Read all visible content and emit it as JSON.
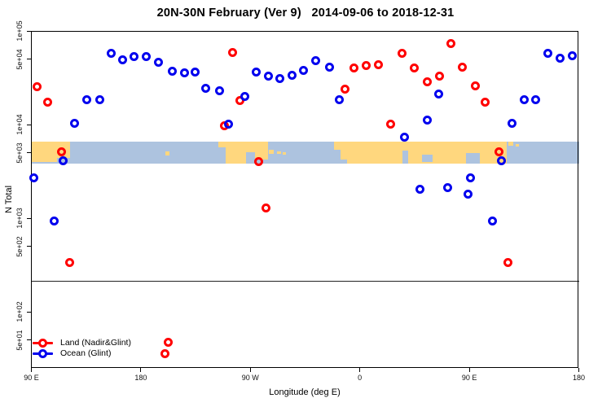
{
  "title": "20N-30N February (Ver 9)   2014-09-06 to 2018-12-31",
  "axes": {
    "x_label": "Longitude (deg E)",
    "y_label": "N Total",
    "x_ticks": [
      {
        "label": "90 E",
        "t": 0
      },
      {
        "label": "180",
        "t": 90
      },
      {
        "label": "90 W",
        "t": 180
      },
      {
        "label": "0",
        "t": 270
      },
      {
        "label": "90 E",
        "t": 360
      },
      {
        "label": "180",
        "t": 450
      }
    ],
    "y_ticks": [
      {
        "label": "1e+05",
        "n": 100000
      },
      {
        "label": "5e+04",
        "n": 50000
      },
      {
        "label": "1e+04",
        "n": 10000
      },
      {
        "label": "5e+03",
        "n": 5000
      },
      {
        "label": "1e+03",
        "n": 1000
      },
      {
        "label": "5e+02",
        "n": 500
      },
      {
        "label": "1e+02",
        "n": 100
      },
      {
        "label": "5e+01",
        "n": 50
      }
    ]
  },
  "legend": {
    "items": [
      {
        "label": "Land (Nadir&Glint)",
        "color": "#FF0000"
      },
      {
        "label": "Ocean (Glint)",
        "color": "#0000EE"
      }
    ]
  },
  "colors": {
    "land_point": "#FF0000",
    "ocean_point": "#0000EE",
    "map_land": "#FFD77E",
    "map_ocean": "#ADC3DF",
    "axis": "#000000"
  },
  "chart_data": {
    "type": "scatter",
    "title": "20N-30N February (Ver 9)   2014-09-06 to 2018-12-31",
    "xlabel": "Longitude (deg E)",
    "ylabel": "N Total",
    "x_axis": {
      "note": "degrees east of 90E, axis wraps 90E->180->90W->0->90E->180",
      "range": [
        0,
        450
      ]
    },
    "y_axis": {
      "scale": "log10",
      "top": 100000,
      "bottom": 25
    },
    "threshold_line_n": 214,
    "map_band": {
      "top_n": 6560,
      "bottom_n": 3830,
      "land_patches": [
        [
          0,
          0,
          31.8,
          0.74
        ],
        [
          0,
          0.7,
          21,
          0.23
        ],
        [
          110.2,
          0.45,
          3.3,
          0.18
        ],
        [
          153.7,
          0,
          6.7,
          0.26
        ],
        [
          159.7,
          0,
          16.7,
          1.0
        ],
        [
          176.4,
          0,
          7.5,
          0.5
        ],
        [
          183.8,
          0,
          10.7,
          0.81
        ],
        [
          195.2,
          0.37,
          4.0,
          0.18
        ],
        [
          201.9,
          0.44,
          3.3,
          0.13
        ],
        [
          206.6,
          0.48,
          2.7,
          0.13
        ],
        [
          248.8,
          0,
          5.4,
          0.37
        ],
        [
          254.1,
          0,
          136.6,
          1.0
        ],
        [
          392.1,
          0,
          4.0,
          0.2
        ],
        [
          398.1,
          0.11,
          2.7,
          0.13
        ]
      ],
      "ocean_notches": [
        [
          305.0,
          0.41,
          4.7,
          0.59
        ],
        [
          321.1,
          0.59,
          8.7,
          0.34
        ],
        [
          357.3,
          0.52,
          11.4,
          0.48
        ],
        [
          254.1,
          0.81,
          5.4,
          0.19
        ]
      ]
    },
    "series": [
      {
        "name": "Land (Nadir&Glint)",
        "color": "#FF0000",
        "points": [
          [
            4.8,
            25600
          ],
          [
            13.3,
            17500
          ],
          [
            24.9,
            5100
          ],
          [
            31.6,
            334
          ],
          [
            109.7,
            36
          ],
          [
            112.6,
            47
          ],
          [
            158.8,
            9700
          ],
          [
            165.7,
            59000
          ],
          [
            171.6,
            18200
          ],
          [
            187.0,
            4000
          ],
          [
            193.0,
            1280
          ],
          [
            257.7,
            23800
          ],
          [
            265.1,
            40600
          ],
          [
            275.1,
            42300
          ],
          [
            285.3,
            44000
          ],
          [
            295.2,
            10100
          ],
          [
            305.0,
            57600
          ],
          [
            314.6,
            40000
          ],
          [
            325.3,
            28700
          ],
          [
            335.2,
            32900
          ],
          [
            345.2,
            73000
          ],
          [
            354.4,
            40900
          ],
          [
            364.8,
            25800
          ],
          [
            373.3,
            17500
          ],
          [
            384.5,
            5100
          ],
          [
            391.6,
            334
          ]
        ]
      },
      {
        "name": "Ocean (Glint)",
        "color": "#0000EE",
        "points": [
          [
            1.7,
            2700
          ],
          [
            18.9,
            940
          ],
          [
            26.3,
            4100
          ],
          [
            35.6,
            10300
          ],
          [
            45.7,
            18500
          ],
          [
            56.1,
            18500
          ],
          [
            65.8,
            57100
          ],
          [
            75.1,
            49300
          ],
          [
            84.7,
            52700
          ],
          [
            94.1,
            52700
          ],
          [
            104.3,
            46700
          ],
          [
            115.9,
            36800
          ],
          [
            125.6,
            35800
          ],
          [
            134.5,
            36500
          ],
          [
            143.6,
            24600
          ],
          [
            154.4,
            23000
          ],
          [
            162.2,
            10100
          ],
          [
            175.6,
            19900
          ],
          [
            184.5,
            36500
          ],
          [
            194.7,
            33000
          ],
          [
            204.1,
            31300
          ],
          [
            214.2,
            33700
          ],
          [
            223.8,
            37700
          ],
          [
            234.0,
            48200
          ],
          [
            244.8,
            41400
          ],
          [
            252.8,
            18400
          ],
          [
            306.4,
            7400
          ],
          [
            319.6,
            2040
          ],
          [
            325.3,
            11100
          ],
          [
            334.7,
            21100
          ],
          [
            342.1,
            2140
          ],
          [
            358.6,
            1810
          ],
          [
            361.1,
            2700
          ],
          [
            378.7,
            940
          ],
          [
            386.1,
            4100
          ],
          [
            395.0,
            10300
          ],
          [
            405.0,
            18500
          ],
          [
            414.6,
            18500
          ],
          [
            424.4,
            57100
          ],
          [
            434.7,
            50900
          ],
          [
            444.5,
            54800
          ]
        ]
      }
    ]
  }
}
